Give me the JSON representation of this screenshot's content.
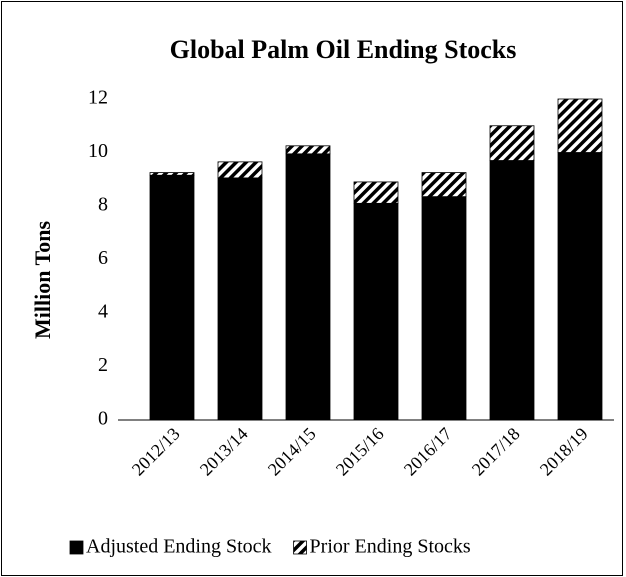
{
  "chart_data": {
    "type": "stacked_bar",
    "title": "Global Palm Oil Ending Stocks",
    "y_label": "Million Tons",
    "categories": [
      "2012/13",
      "2013/14",
      "2014/15",
      "2015/16",
      "2016/17",
      "2017/18",
      "2018/19"
    ],
    "series": [
      {
        "name": "Adjusted Ending Stock",
        "color": "#000000",
        "hatch": false,
        "values": [
          9.15,
          9.05,
          9.95,
          8.1,
          8.35,
          9.7,
          10.0
        ]
      },
      {
        "name": "Prior Ending Stocks",
        "color": "#000000",
        "hatch": true,
        "values": [
          0.1,
          0.6,
          0.3,
          0.8,
          0.9,
          1.3,
          2.0
        ]
      }
    ],
    "ylim": [
      0,
      12
    ],
    "yticks": [
      0,
      2,
      4,
      6,
      8,
      10,
      12
    ],
    "grid": false,
    "legend": "bottom"
  }
}
